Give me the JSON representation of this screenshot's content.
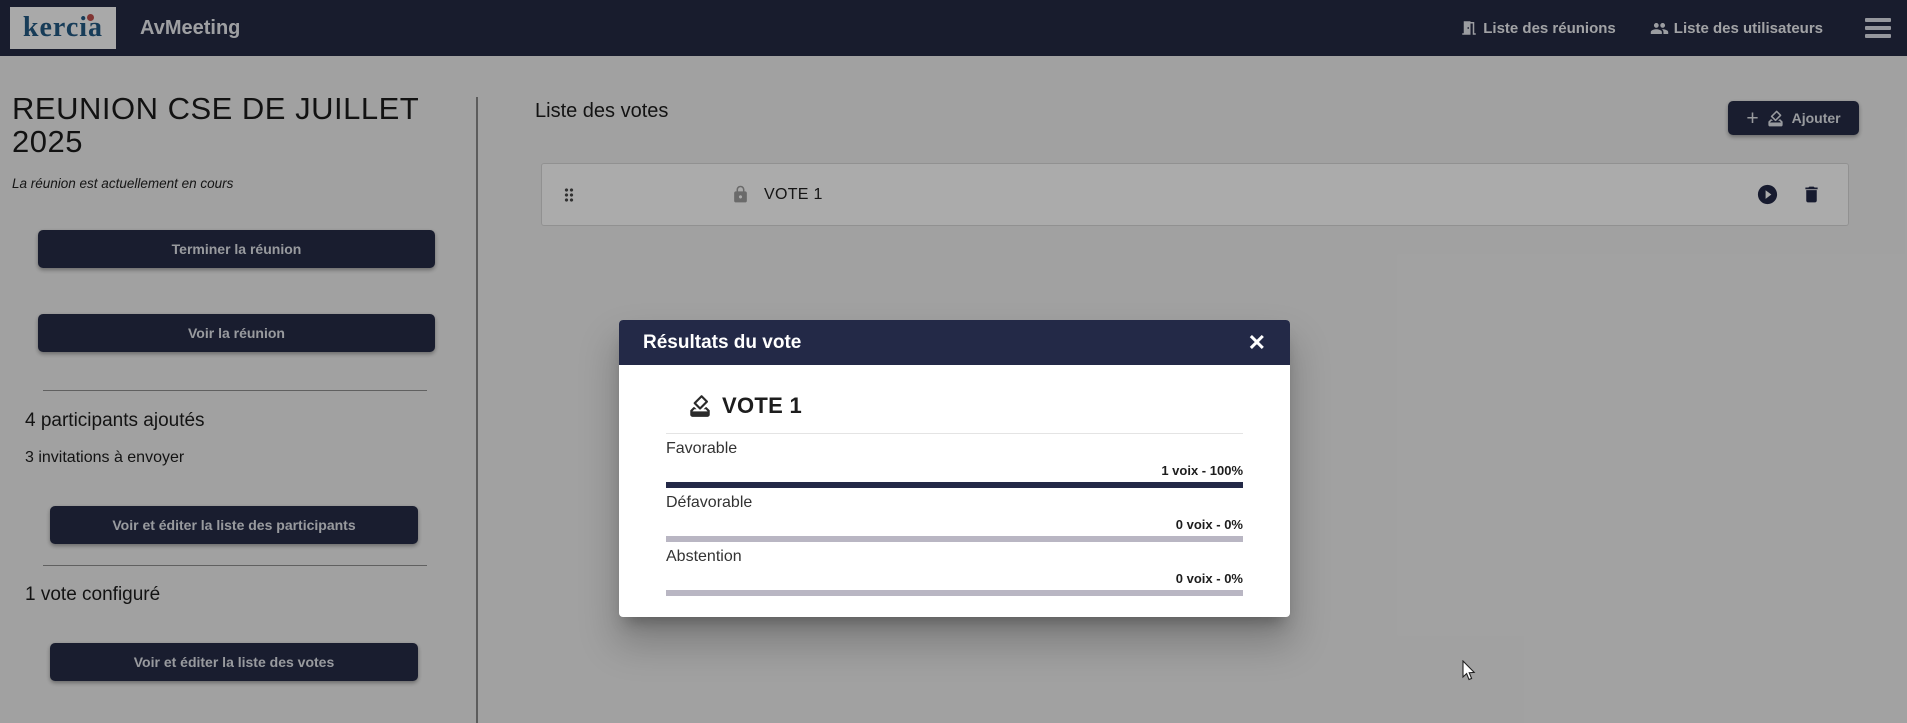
{
  "navbar": {
    "logo_text": "kercia",
    "app_title": "AvMeeting",
    "links": [
      {
        "label": "Liste des réunions",
        "icon": "meeting-room-door"
      },
      {
        "label": "Liste des utilisateurs",
        "icon": "people"
      }
    ]
  },
  "sidebar": {
    "title": "REUNION CSE DE JUILLET 2025",
    "status": "La réunion est actuellement en cours",
    "end_meeting_button": "Terminer la réunion",
    "view_meeting_button": "Voir la réunion",
    "participants_added": "4 participants ajoutés",
    "invitations_to_send": "3 invitations à envoyer",
    "edit_participants_button": "Voir et éditer la liste des participants",
    "votes_configured": "1 vote configuré",
    "edit_votes_button": "Voir et éditer la liste des votes"
  },
  "main": {
    "title": "Liste des votes",
    "add_button_label": "Ajouter",
    "add_button_plus": "+",
    "votes": [
      {
        "name": "VOTE 1",
        "locked": true
      }
    ]
  },
  "modal": {
    "title": "Résultats du vote",
    "close_label": "✕",
    "vote_name": "VOTE 1",
    "results": [
      {
        "label": "Favorable",
        "value": "1 voix - 100%",
        "percent": 100
      },
      {
        "label": "Défavorable",
        "value": "0 voix - 0%",
        "percent": 0
      },
      {
        "label": "Abstention",
        "value": "0 voix - 0%",
        "percent": 0
      }
    ]
  },
  "colors": {
    "brand_navy": "#252b44",
    "modal_header": "#232947",
    "logo_blue": "#235a84",
    "logo_dot_red": "#c0504d",
    "bar_empty": "#b9b6c3"
  }
}
